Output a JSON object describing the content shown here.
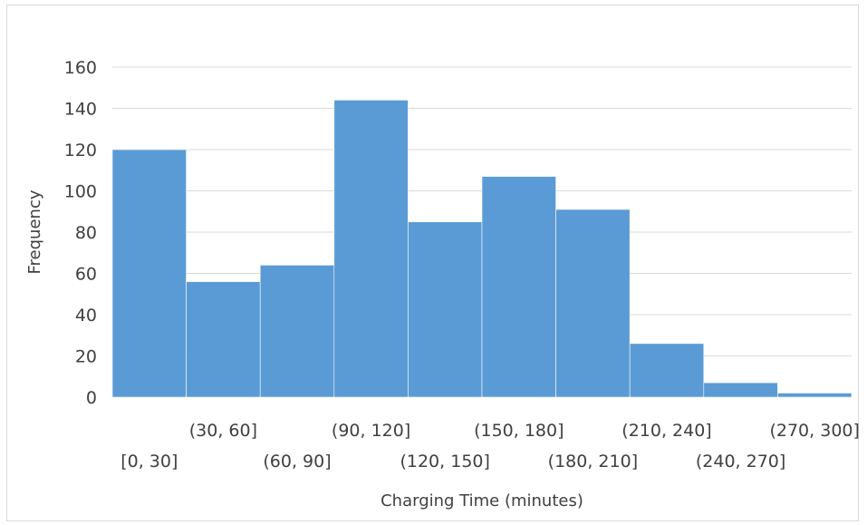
{
  "chart_data": {
    "type": "bar",
    "title": "",
    "xlabel": "Charging Time (minutes)",
    "ylabel": "Frequency",
    "categories": [
      "[0, 30]",
      "(30, 60]",
      "(60, 90]",
      "(90, 120]",
      "(120, 150]",
      "(150, 180]",
      "(180, 210]",
      "(210, 240]",
      "(240, 270]",
      "(270, 300]"
    ],
    "values": [
      120,
      56,
      64,
      144,
      85,
      107,
      91,
      26,
      7,
      2
    ],
    "ylim": [
      0,
      160
    ],
    "yticks": [
      "0",
      "20",
      "40",
      "60",
      "80",
      "100",
      "120",
      "140",
      "160"
    ],
    "grid": true,
    "bar_color": "#5b9bd5",
    "grid_color": "#d9d9d9"
  }
}
